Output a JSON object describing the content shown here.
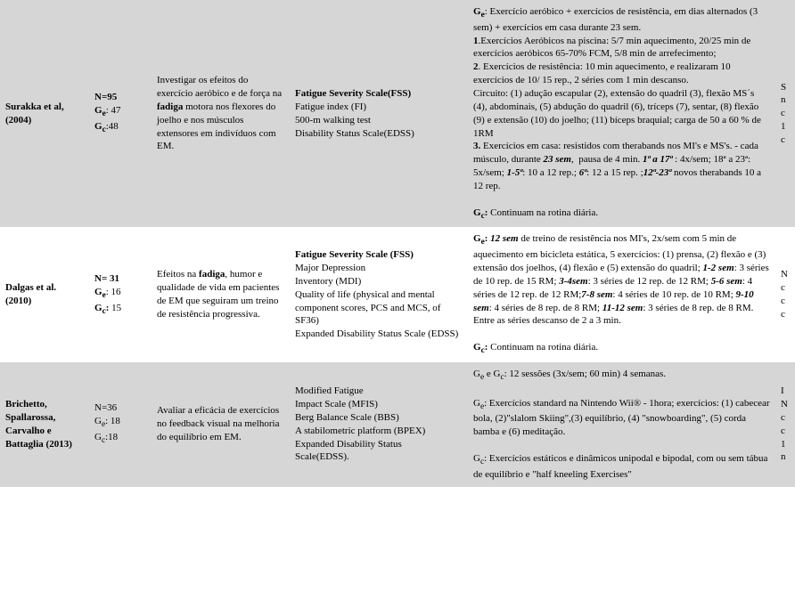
{
  "rows": [
    {
      "bg": "grey",
      "author_html": "<b>Surakka et al, (2004)</b>",
      "n_html": "<b>N=95</b><br><b>G<span class='sub'>e</span></b>: 47<br><b>G<span class='sub'>c</span></b>:48",
      "objective_html": "Investigar os efeitos do exercício aeróbico e de força na <b>fadiga</b> motora nos flexores do joelho e nos músculos extensores em indivíduos com EM.",
      "measures_html": "<b>Fatigue Severity Scale(FSS)</b><br>Fatigue index (FI)<br>500-m walking test<br>Disability Status Scale(EDSS)",
      "protocol_html": "<b>G<span class='sub'>e</span></b>: Exercício aeróbico + exercícios de resistência, em dias alternados (3 sem) + exercícios em casa durante 23 sem.<br><b>1</b>.Exercícios Aeróbicos na piscina: 5/7 min aquecimento, 20/25 min de exercícios aeróbicos 65-70% FCM, 5/8 min de arrefecimento;<br><b>2</b>. Exercícios de resistência: 10 min aquecimento, e realizaram 10 exercícios de 10/ 15 rep., 2 séries com 1 min descanso.<br>Circuito: (1) adução escapular (2), extensão do quadril (3), flexão MS´s (4), abdominais, (5) abdução do quadril (6), tríceps (7), sentar, (8) flexão (9) e extensão (10) do joelho; (11) bíceps braquial; carga de 50 a 60 % de 1RM<br><b>3.</b> Exercícios em casa: resistidos com therabands nos MI's e MS's. - cada músculo, durante <span class='bi'>23 sem</span>, &nbsp;pausa de 4 min. <span class='bi'>1ª a 17ª</span> : 4x/sem; 18ª a 23ª: 5x/sem; <span class='bi'>1-5ª</span>: 10 a 12 rep.; <span class='bi'>6ª</span>: 12 a 15 rep. ;<span class='bi'>12ª-23ª</span> novos therabands 10 a 12 rep.<br><br><b>G<span class='sub'>c</span>:</b> Continuam na rotina diária.",
      "edge_html": "S<br>n<br>c<br>1<br>c"
    },
    {
      "bg": "white",
      "author_html": "<b>Dalgas et al. (2010)</b>",
      "n_html": "<b>N= 31</b><br><b>G<span class='sub'>e</span></b>: 16<br><b>G<span class='sub'>c</span>:</b> 15",
      "objective_html": "Efeitos na <b>fadiga</b>, humor e qualidade de vida em pacientes de EM que seguiram um treino de resistência progressiva.",
      "measures_html": "<b>Fatigue Severity Scale (FSS)</b><br>Major Depression<br>Inventory (MDI)<br>Quality of life (physical and mental component scores, PCS and MCS, of SF36)<br>Expanded Disability Status Scale (EDSS)",
      "protocol_html": "<b>G<span class='sub'>e</span>:</b> <span class='bi'>12 sem</span> de treino de resistência nos MI's, 2x/sem com 5 min de aquecimento em bicicleta estática, 5 exercícios: (1) prensa, (2) flexão e (3) extensão dos joelhos, (4) flexão e (5) extensão do quadril; <span class='bi'>1-2 sem</span>: 3 séries de 10 rep. de 15 RM; <span class='bi'>3-4sem</span>: 3 séries de 12 rep. de 12 RM; <span class='bi'>5-6 sem</span>: 4 séries de 12 rep. de 12 RM;<span class='bi'>7-8 sem</span>: 4 séries de 10 rep. de 10 RM; <span class='bi'>9-10 sem</span>: 4 séries de 8 rep. de 8 RM; <span class='bi'>11-12 sem</span>: 3 séries de 8 rep. de 8 RM. Entre as séries descanso de 2 a 3 min.<br><br><b>G<span class='sub'>c</span>:</b> Continuam na rotina diária.",
      "edge_html": "N<br>c<br>c<br>c"
    },
    {
      "bg": "grey",
      "author_html": "<b>Brichetto, Spallarossa, Carvalho e Battaglia (2013)</b>",
      "n_html": "N=36<br>G<span class='sub'>e</span>: 18<br>G<span class='sub'>c</span>:18",
      "objective_html": "Avaliar a eficácia de exercícios no feedback visual na melhoria do equilíbrio em EM.",
      "measures_html": "Modified Fatigue<br>Impact Scale (MFIS)<br>Berg Balance Scale (BBS)<br>A stabilometric platform (BPEX)<br>Expanded Disability Status<br>Scale(EDSS).",
      "protocol_html": "G<span class='sub'>e</span> e G<span class='sub'>c</span>: 12 sessões (3x/sem; 60 min) 4 semanas.<br><br>G<span class='sub'>e</span>: Exercícios standard na Nintendo Wii® - 1hora; exercícios: (1) cabecear bola, (2)\"slalom Skiing\",(3) equilíbrio, (4) \"snowboarding\", (5) corda bamba e (6) meditação.<br><br>G<span class='sub'>c</span>: Exercícios estáticos e dinâmicos unipodal e bipodal, com ou sem tábua de equilíbrio e \"half kneeling Exercises\"",
      "edge_html": "I<br>N<br>c<br>c<br>1<br>n"
    }
  ]
}
